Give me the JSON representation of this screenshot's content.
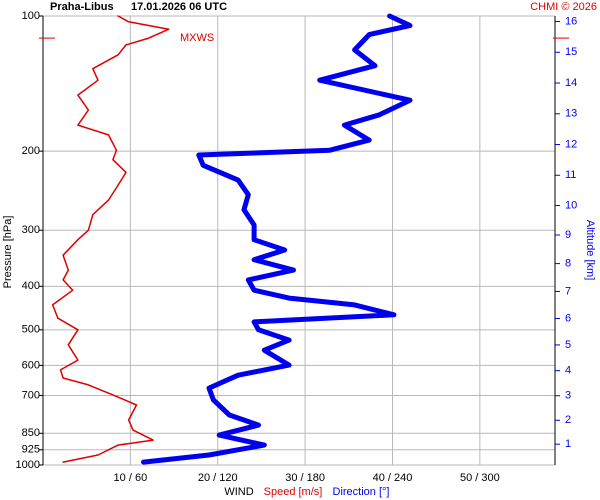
{
  "chart_data": {
    "type": "profile",
    "title": "Praha-Libus",
    "subtitle": "17.01.2026 06 UTC",
    "credit": "CHMI © 2026",
    "ylabel": "Pressure [hPa]",
    "y2label": "Altitude [km]",
    "xlabel": "WIND",
    "ylim": [
      100,
      1000
    ],
    "ylog": true,
    "yticks": [
      100,
      200,
      300,
      400,
      500,
      600,
      700,
      850,
      925,
      1000
    ],
    "y2ticks": [
      1,
      2,
      3,
      4,
      5,
      6,
      7,
      8,
      9,
      10,
      11,
      12,
      13,
      14,
      15,
      16
    ],
    "xlim": [
      0,
      58.6
    ],
    "x2lim": [
      0,
      351.6
    ],
    "xticks": [
      {
        "value": 10,
        "label": "10 / 60"
      },
      {
        "value": 20,
        "label": "20 / 120"
      },
      {
        "value": 30,
        "label": "30 / 180"
      },
      {
        "value": 40,
        "label": "40 / 240"
      },
      {
        "value": 50,
        "label": "50 / 300"
      }
    ],
    "grid": true,
    "annotation": {
      "text": "MXWS",
      "pressure": 112,
      "color": "#e00000"
    },
    "series": [
      {
        "name": "Speed [m/s]",
        "color": "#e00000",
        "axis": "x",
        "pressure": [
          985,
          950,
          903,
          880,
          836,
          794,
          735,
          698,
          663,
          640,
          614,
          584,
          540,
          500,
          471,
          440,
          408,
          387,
          368,
          341,
          315,
          300,
          277,
          257,
          238,
          223,
          209,
          199,
          184,
          175,
          162,
          150,
          139,
          131,
          122,
          116,
          112,
          107,
          103,
          100
        ],
        "values": [
          2.3,
          6.3,
          8.6,
          12.6,
          10.3,
          9.8,
          10.7,
          8.0,
          5.2,
          2.3,
          2.0,
          4.0,
          2.9,
          4.0,
          1.7,
          1.1,
          3.4,
          2.3,
          2.9,
          2.3,
          4.0,
          5.2,
          5.7,
          7.5,
          8.6,
          9.5,
          8.0,
          8.4,
          7.5,
          4.0,
          5.2,
          4.0,
          6.3,
          5.7,
          8.6,
          9.5,
          12.1,
          14.4,
          9.8,
          8.6
        ]
      },
      {
        "name": "Direction [°]",
        "color": "#0000ee",
        "axis": "x2",
        "pressure": [
          985,
          950,
          903,
          858,
          815,
          774,
          716,
          674,
          631,
          599,
          555,
          527,
          500,
          480,
          463,
          440,
          425,
          408,
          387,
          368,
          349,
          332,
          315,
          292,
          270,
          250,
          232,
          215,
          204,
          199,
          189,
          175,
          166,
          154,
          139,
          129,
          119,
          110,
          105,
          100
        ],
        "values": [
          69,
          114,
          152,
          121,
          148,
          128,
          117,
          114,
          134,
          169,
          152,
          169,
          148,
          145,
          241,
          214,
          169,
          145,
          141,
          172,
          145,
          166,
          145,
          145,
          138,
          141,
          134,
          110,
          107,
          197,
          224,
          207,
          231,
          252,
          190,
          228,
          214,
          224,
          252,
          238
        ]
      }
    ]
  }
}
